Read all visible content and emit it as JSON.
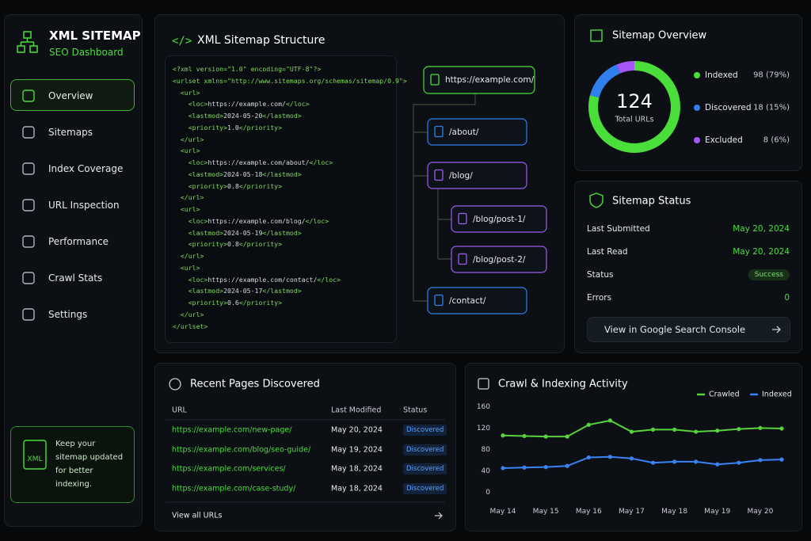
{
  "sidebar": {
    "title": "XML SITEMAP",
    "subtitle": "SEO Dashboard",
    "nav": [
      "Overview",
      "Sitemaps",
      "Index Coverage",
      "URL Inspection",
      "Performance",
      "Crawl Stats",
      "Settings"
    ],
    "tip_icon": "XML",
    "tip": "Keep your sitemap updated for better indexing."
  },
  "structure": {
    "title": "XML Sitemap Structure",
    "code": [
      "<?xml version=\"1.0\" encoding=\"UTF-8\"?>",
      "<urlset xmlns=\"http://www.sitemaps.org/schemas/sitemap/0.9\">",
      "  <url>",
      "    <loc>https://example.com/</loc>",
      "    <lastmod>2024-05-20</lastmod>",
      "    <priority>1.0</priority>",
      "  </url>",
      "  <url>",
      "    <loc>https://example.com/about/</loc>",
      "    <lastmod>2024-05-18</lastmod>",
      "    <priority>0.8</priority>",
      "  </url>",
      "  <url>",
      "    <loc>https://example.com/blog/</loc>",
      "    <lastmod>2024-05-19</lastmod>",
      "    <priority>0.8</priority>",
      "  </url>",
      "  <url>",
      "    <loc>https://example.com/contact/</loc>",
      "    <lastmod>2024-05-17</lastmod>",
      "    <priority>0.6</priority>",
      "  </url>",
      "</urlset>"
    ],
    "nodes": [
      "https://example.com/",
      "/about/",
      "/blog/",
      "/blog/post-1/",
      "/blog/post-2/",
      "/contact/"
    ]
  },
  "status": {
    "title": "Sitemap Status",
    "rows": [
      [
        "Last Submitted",
        "May 20, 2024"
      ],
      [
        "Last Read",
        "May 20, 2024"
      ],
      [
        "Status",
        "Success"
      ],
      [
        "Errors",
        0
      ]
    ],
    "button": "View in Google Search Console"
  },
  "recent": {
    "title": "Recent Pages Discovered",
    "columns": [
      "URL",
      "Last Modified",
      "Status"
    ],
    "rows": [
      [
        "https://example.com/new-page/",
        "May 20, 2024",
        "Discovered"
      ],
      [
        "https://example.com/blog/seo-guide/",
        "May 19, 2024",
        "Discovered"
      ],
      [
        "https://example.com/services/",
        "May 18, 2024",
        "Discovered"
      ],
      [
        "https://example.com/case-study/",
        "May 18, 2024",
        "Discovered"
      ]
    ],
    "footer": "View all URLs"
  },
  "chart_data": [
    {
      "type": "donut",
      "title": "Sitemap Overview",
      "total": 124,
      "total_label": "Total URLs",
      "categories": [
        "Indexed",
        "Discovered",
        "Excluded"
      ],
      "values": [
        98,
        18,
        8
      ],
      "value_labels": [
        "98 (79%)",
        "18 (15%)",
        "8 (6%)"
      ],
      "colors": [
        "#4ade3a",
        "#2f80ed",
        "#a855f7"
      ]
    },
    {
      "type": "line",
      "title": "Crawl & Indexing Activity",
      "categories": [
        "May 14",
        null,
        "May 15",
        null,
        "May 16",
        null,
        "May 17",
        null,
        "May 18",
        null,
        "May 19",
        null,
        "May 20",
        null
      ],
      "series": [
        {
          "name": "Crawled",
          "color": "#57d13c",
          "values": [
            107,
            106,
            105,
            105,
            127,
            135,
            114,
            118,
            118,
            114,
            116,
            119,
            121,
            120
          ]
        },
        {
          "name": "Indexed",
          "color": "#3b82f6",
          "values": [
            46,
            47,
            48,
            50,
            66,
            67,
            64,
            56,
            58,
            58,
            53,
            56,
            61,
            62
          ]
        }
      ],
      "ylim": [
        0,
        160
      ],
      "yticks": [
        0,
        40,
        80,
        120,
        160
      ],
      "grid": false,
      "legend": "top-right"
    }
  ]
}
